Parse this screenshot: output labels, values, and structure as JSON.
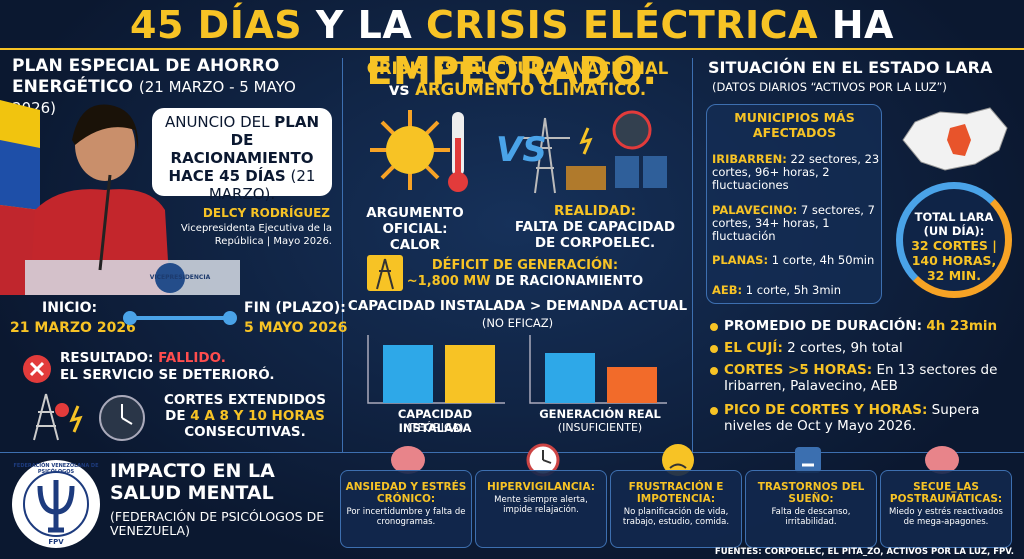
{
  "header": {
    "title": [
      "45 DÍAS",
      "Y LA",
      "CRISIS ELÉCTRICA",
      "HA",
      "EMPEORADO."
    ]
  },
  "left": {
    "heading": "PLAN ESPECIAL DE AHORRO ENERGÉTICO",
    "dates": "(21 MARZO - 5 MAYO 2026)",
    "bubble": [
      "ANUNCIO DEL",
      "PLAN DE RACIONAMIENTO HACE 45 DÍAS",
      "(21 MARZO)."
    ],
    "person_name": "DELCY RODRÍGUEZ",
    "person_role": "Vicepresidenta Ejecutiva de la República | Mayo 2026.",
    "podium": "VICEPRESIDENCIA",
    "start_label": "INICIO:",
    "start_date": "21 MARZO 2026",
    "end_label": "FIN (PLAZO):",
    "end_date": "5 MAYO 2026",
    "result_label": "RESULTADO:",
    "result_value": "FALLIDO.",
    "result_note": "EL SERVICIO SE DETERIORÓ.",
    "cuts": [
      "CORTES EXTENDIDOS",
      "DE",
      "4 A 8 Y 10 HORAS",
      "CONSECUTIVAS."
    ]
  },
  "center": {
    "heading": [
      "CRISIS ESTRUCTURAL NACIONAL",
      "vs",
      "ARGUMENTO CLIMÁTICO."
    ],
    "vs": "VS",
    "argument": "ARGUMENTO OFICIAL: CALOR",
    "reality_label": "REALIDAD:",
    "reality": "FALTA DE CAPACIDAD DE CORPOELEC.",
    "deficit_label": "DÉFICIT DE GENERACIÓN:",
    "deficit_value": "~1,800 MW",
    "deficit_note": "DE RACIONAMIENTO",
    "comparison": "CAPACIDAD INSTALADA > DEMANDA ACTUAL",
    "comparison_note": "(NO EFICAZ)",
    "chart1_label": "CAPACIDAD INSTALADA",
    "chart1_note": "(TEÓRICA)",
    "chart2_label": "GENERACIÓN REAL",
    "chart2_note": "(INSUFICIENTE)"
  },
  "right": {
    "heading": "SITUACIÓN EN EL ESTADO LARA",
    "subheading": "(DATOS DIARIOS “ACTIVOS POR LA LUZ”)",
    "box_title": "MUNICIPIOS MÁS AFECTADOS",
    "municipalities": [
      {
        "name": "IRIBARREN:",
        "detail": "22 sectores, 23 cortes, 96+ horas, 2 fluctuaciones"
      },
      {
        "name": "PALAVECINO:",
        "detail": "7 sectores, 7 cortes, 34+ horas, 1 fluctuación"
      },
      {
        "name": "PLANAS:",
        "detail": "1 corte, 4h 50min"
      },
      {
        "name": "AEB:",
        "detail": "1 corte, 5h 3min"
      }
    ],
    "total_label": "TOTAL LARA (UN DÍA):",
    "total_value": "32 CORTES | 140 HORAS, 32 MIN.",
    "bullets": [
      {
        "label": "PROMEDIO DE DURACIÓN:",
        "value": "4h 23min"
      },
      {
        "label": "EL CUJÍ:",
        "value": "2 cortes, 9h total"
      },
      {
        "label": "CORTES >5 HORAS:",
        "value": "En 13 sectores de Iribarren, Palavecino, AEB"
      },
      {
        "label": "PICO DE CORTES Y HORAS:",
        "value": "Supera niveles de Oct y Mayo 2026."
      }
    ]
  },
  "bottom": {
    "heading": "IMPACTO EN LA SALUD MENTAL",
    "source_org": "(FEDERACIÓN DE PSICÓLOGOS DE VENEZUELA)",
    "logo_text": "FEDERACIÓN VENEZOLANA DE PSICÓLOGOS",
    "logo_abbr": "FPV",
    "cards": [
      {
        "title": "ANSIEDAD Y ESTRÉS CRÓNICO:",
        "text": "Por incertidumbre y falta de cronogramas."
      },
      {
        "title": "HIPERVIGILANCIA:",
        "text": "Mente siempre alerta, impide relajación."
      },
      {
        "title": "FRUSTRACIÓN E IMPOTENCIA:",
        "text": "No planificación de vida, trabajo, estudio, comida."
      },
      {
        "title": "TRASTORNOS DEL SUEÑO:",
        "text": "Falta de descanso, irritabilidad."
      },
      {
        "title": "SECUE_LAS POSTRAUMÁTICAS:",
        "text": "Miedo y estrés reactivados de mega-apagones."
      }
    ],
    "sources": "FUENTES: CORPOELEC, EL PITA_ZO, ACTIVOS POR LA LUZ, FPV."
  }
}
